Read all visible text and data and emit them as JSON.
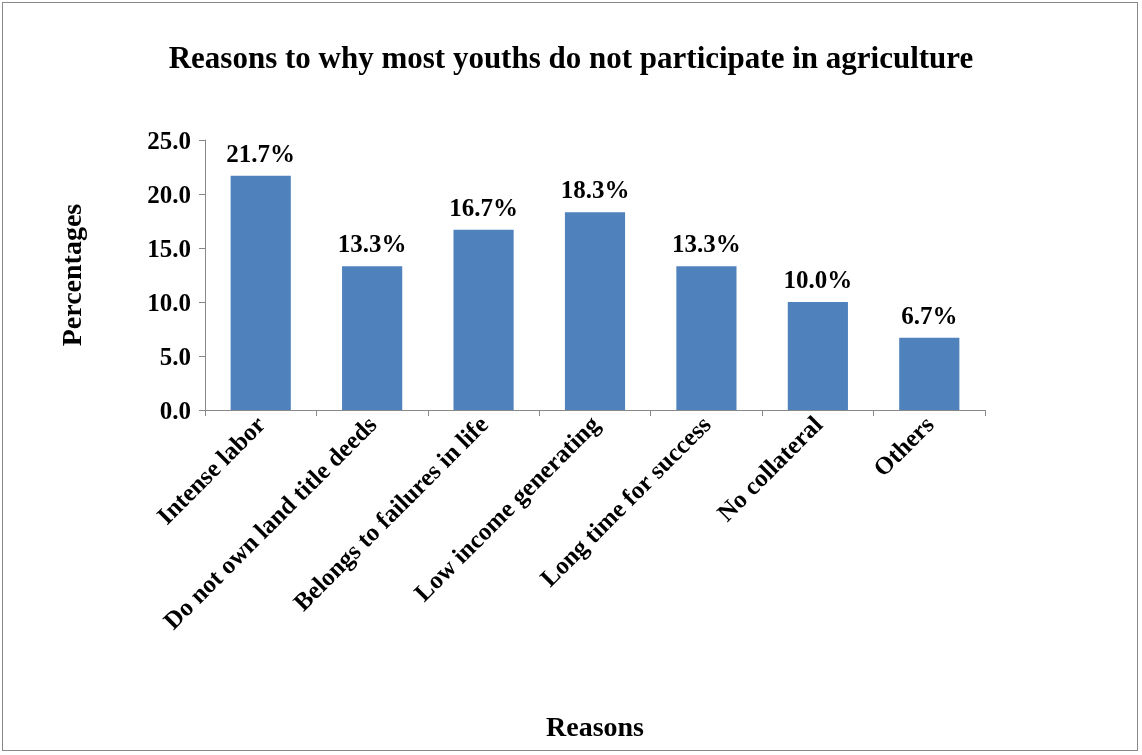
{
  "chart_data": {
    "type": "bar",
    "title": "Reasons to why most youths do not participate in agriculture",
    "xlabel": "Reasons",
    "ylabel": "Percentages",
    "categories": [
      "Intense labor",
      "Do not own land title deeds",
      "Belongs to failures in life",
      "Low income generating",
      "Long time for success",
      "No collateral",
      "Others"
    ],
    "values": [
      21.7,
      13.3,
      16.7,
      18.3,
      13.3,
      10.0,
      6.7
    ],
    "value_labels": [
      "21.7%",
      "13.3%",
      "16.7%",
      "18.3%",
      "13.3%",
      "10.0%",
      "6.7%"
    ],
    "color": "#4f81bd",
    "ylim": [
      0,
      25
    ],
    "yticks": [
      {
        "value": 0,
        "label": "0.0"
      },
      {
        "value": 5,
        "label": "5.0"
      },
      {
        "value": 10,
        "label": "10.0"
      },
      {
        "value": 15,
        "label": "15.0"
      },
      {
        "value": 20,
        "label": "20.0"
      },
      {
        "value": 25,
        "label": "25.0"
      }
    ],
    "grid": false
  }
}
